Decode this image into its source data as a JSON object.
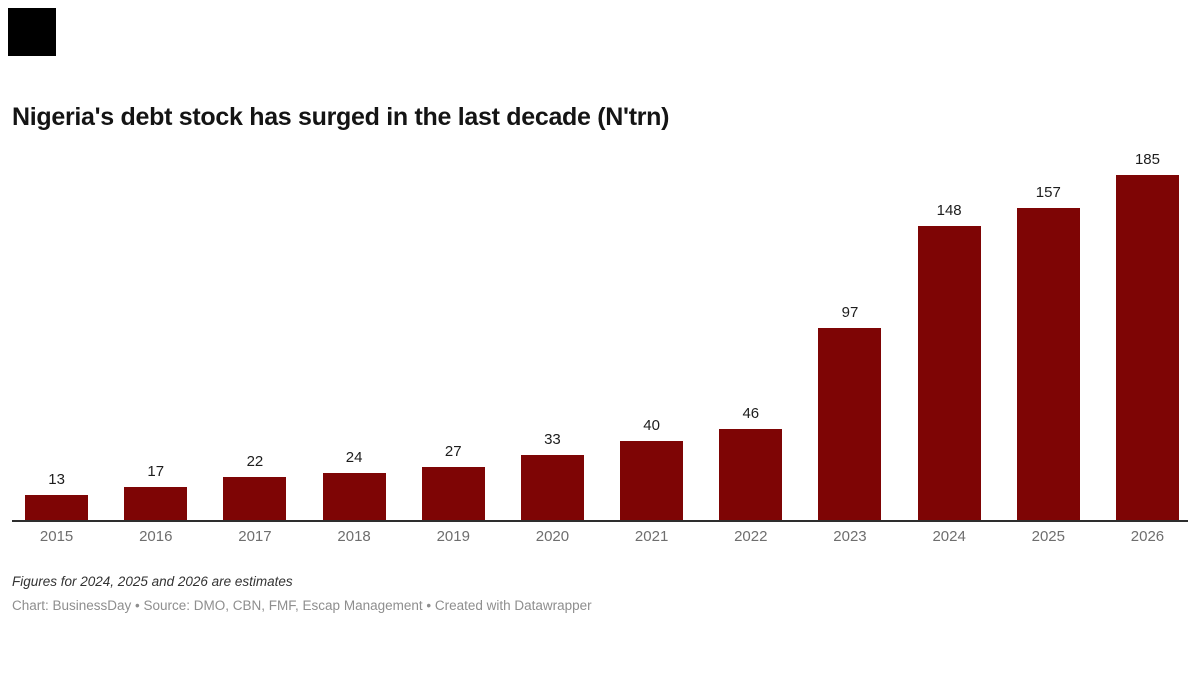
{
  "chart": {
    "title": "Nigeria's debt stock has surged in the last decade (N'trn)",
    "note": "Figures for 2024, 2025 and 2026 are estimates",
    "attribution": "Chart: BusinessDay • Source: DMO, CBN, FMF, Escap Management • Created with Datawrapper"
  },
  "chart_data": {
    "type": "bar",
    "categories": [
      "2015",
      "2016",
      "2017",
      "2018",
      "2019",
      "2020",
      "2021",
      "2022",
      "2023",
      "2024",
      "2025",
      "2026"
    ],
    "values": [
      13,
      17,
      22,
      24,
      27,
      33,
      40,
      46,
      97,
      148,
      157,
      185
    ],
    "title": "Nigeria's debt stock has surged in the last decade (N'trn)",
    "xlabel": "",
    "ylabel": "",
    "ylim": [
      0,
      185
    ],
    "grid": false,
    "legend": false,
    "value_labels_shown": true,
    "bar_color": "#7e0505"
  },
  "colors": {
    "bar": "#7e0505",
    "axis_line": "#2e2e2e",
    "value_label": "#1d1d1d",
    "tick_label": "#6e6e6e",
    "note_text": "#333333",
    "attribution_text": "#8e8e8e",
    "logo_square": "#000000",
    "background": "#ffffff"
  }
}
